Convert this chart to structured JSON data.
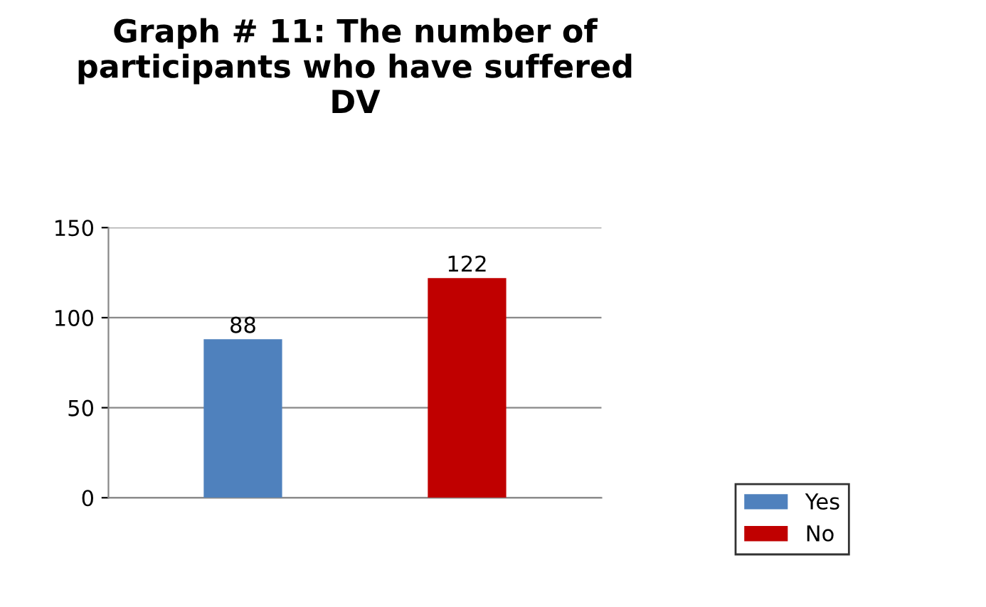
{
  "chart_data": {
    "type": "bar",
    "title": "Graph # 11: The number of participants who have suffered DV",
    "categories": [
      null,
      null
    ],
    "series": [
      {
        "name": "Yes",
        "color": "#4f81bd",
        "values": [
          88,
          null
        ]
      },
      {
        "name": "No",
        "color": "#c00000",
        "values": [
          null,
          122
        ]
      }
    ],
    "ylim": [
      0,
      150
    ],
    "yticks": [
      0,
      50,
      100,
      150
    ],
    "grid": "y",
    "data_labels": true,
    "legend": "bottom right"
  }
}
